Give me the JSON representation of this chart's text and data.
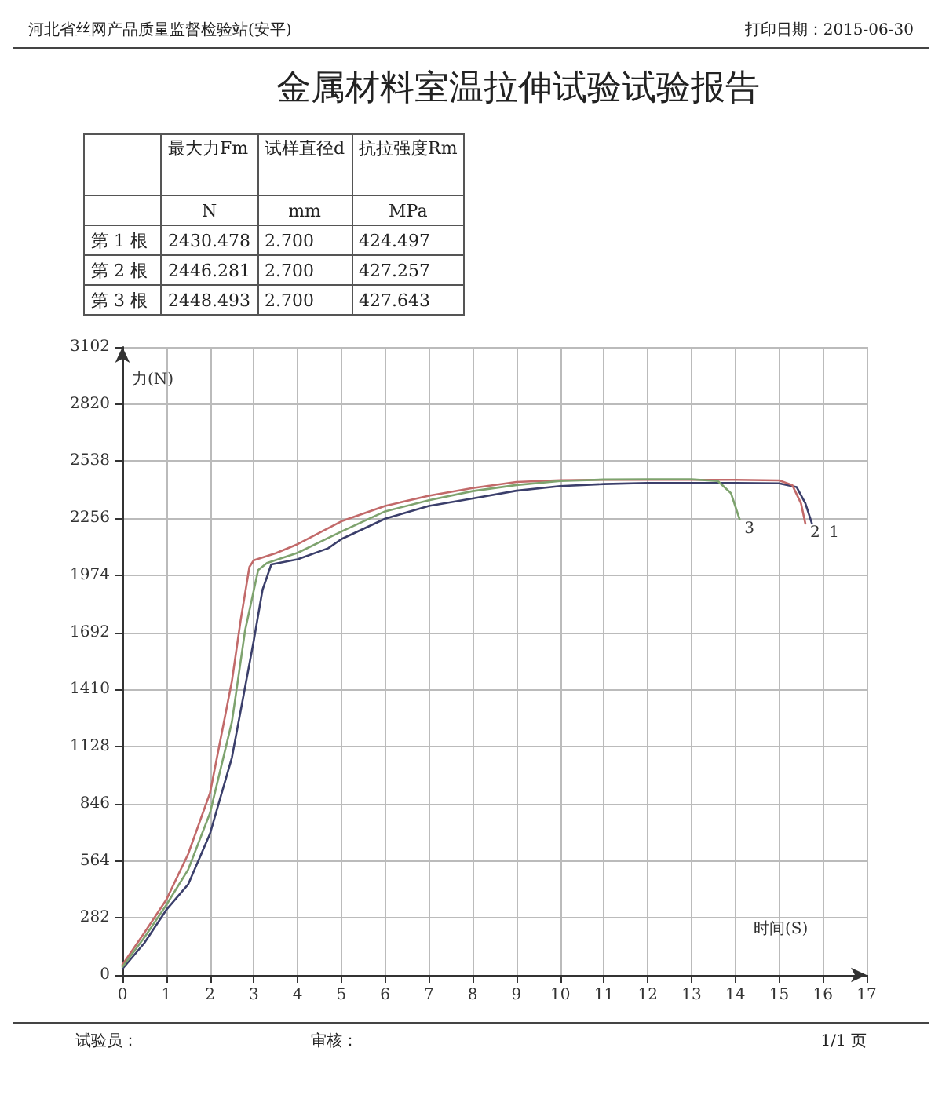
{
  "chart_data": [
    {
      "type": "other",
      "title": "金属材料室温拉伸试验试验报告",
      "annotations": [
        "河北省丝网产品质量监督检验站(安平)",
        "打印日期：2015-06-30",
        "最大力Fm",
        "试样直径d",
        "抗拉强度Rm",
        "N",
        "mm",
        "MPa",
        "第 1 根",
        "2430.478",
        "2.700",
        "424.497",
        "第 2 根",
        "2446.281",
        "2.700",
        "427.257",
        "第 3 根",
        "2448.493",
        "2.700",
        "427.643"
      ]
    },
    {
      "type": "line",
      "xlabel": "时间(S)",
      "ylabel": "力(N)",
      "xlim": [
        0,
        17
      ],
      "xticks": [
        0,
        1,
        2,
        3,
        4,
        5,
        6,
        7,
        8,
        9,
        10,
        11,
        12,
        13,
        14,
        15,
        16,
        17
      ],
      "ylim": [
        0,
        3102
      ],
      "yticks": [
        0,
        282,
        564,
        846,
        1128,
        1410,
        1692,
        1974,
        2256,
        2538,
        2820,
        3102
      ],
      "grid": true,
      "legend": false,
      "marker": "none",
      "line_style": "solid",
      "annotations": [
        "试验员：",
        "审核：",
        "1/1 页"
      ],
      "series": [
        {
          "name": "1",
          "color": "#3b3f6b",
          "x": [
            0,
            0.5,
            1,
            1.5,
            2,
            2.5,
            3,
            3.2,
            3.4,
            4,
            4.7,
            5,
            6,
            7,
            8,
            9,
            10,
            11,
            12,
            13,
            14,
            15,
            15.4,
            15.6,
            15.75
          ],
          "values": [
            30,
            158,
            321,
            447,
            698,
            1074,
            1652,
            1903,
            2028,
            2053,
            2108,
            2153,
            2254,
            2317,
            2354,
            2392,
            2415,
            2425,
            2430,
            2430,
            2430,
            2428,
            2410,
            2330,
            2230
          ]
        },
        {
          "name": "2",
          "color": "#c26a6a",
          "x": [
            0,
            0.5,
            1,
            1.5,
            2,
            2.5,
            2.7,
            2.9,
            3,
            3.5,
            4,
            5,
            6,
            7,
            8,
            9,
            10,
            11,
            12,
            13,
            14,
            15,
            15.3,
            15.5,
            15.6
          ],
          "values": [
            50,
            208,
            371,
            597,
            899,
            1451,
            1752,
            2015,
            2048,
            2083,
            2128,
            2241,
            2317,
            2367,
            2405,
            2435,
            2444,
            2446,
            2446,
            2446,
            2446,
            2443,
            2420,
            2330,
            2230
          ]
        },
        {
          "name": "3",
          "color": "#7ea36e",
          "x": [
            0,
            0.5,
            1,
            1.5,
            2,
            2.5,
            2.8,
            3.1,
            3.3,
            4,
            5,
            6,
            7,
            8,
            9,
            10,
            11,
            12,
            13,
            13.6,
            13.9,
            14.1
          ],
          "values": [
            40,
            185,
            345,
            520,
            800,
            1250,
            1700,
            2000,
            2035,
            2085,
            2190,
            2290,
            2345,
            2390,
            2420,
            2440,
            2447,
            2448,
            2448,
            2440,
            2380,
            2250
          ]
        }
      ]
    }
  ]
}
